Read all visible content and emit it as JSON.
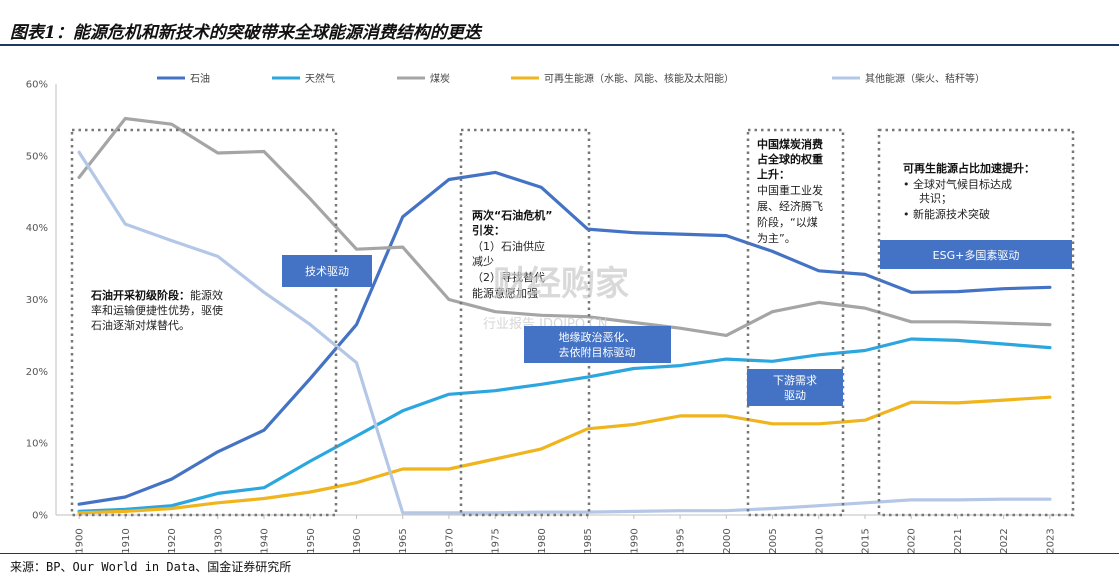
{
  "title": "图表1：能源危机和新技术的突破带来全球能源消费结构的更迭",
  "source": "来源：BP、Our World in Data、国金证券研究所",
  "watermark": {
    "main": "财经购家",
    "sub": "行业报告 IDOIPO.CN"
  },
  "chart_data": {
    "type": "line",
    "x": [
      "1900",
      "1910",
      "1920",
      "1930",
      "1940",
      "1950",
      "1960",
      "1965",
      "1970",
      "1975",
      "1980",
      "1985",
      "1990",
      "1995",
      "2000",
      "2005",
      "2010",
      "2015",
      "2020",
      "2021",
      "2022",
      "2023"
    ],
    "y_ticks": [
      "0%",
      "10%",
      "20%",
      "30%",
      "40%",
      "50%",
      "60%"
    ],
    "ylim": [
      0,
      60
    ],
    "series": [
      {
        "name": "石油",
        "color": "#4472c4",
        "values": [
          1.5,
          2.5,
          5,
          8.8,
          11.8,
          19,
          26.5,
          41.5,
          46.7,
          47.7,
          45.6,
          39.8,
          39.3,
          39.1,
          38.9,
          36.7,
          34,
          33.5,
          31,
          31.1,
          31.5,
          31.7
        ]
      },
      {
        "name": "天然气",
        "color": "#2ba6de",
        "values": [
          0.5,
          0.8,
          1.3,
          3,
          3.8,
          7.5,
          11,
          14.5,
          16.8,
          17.3,
          18.2,
          19.2,
          20.4,
          20.8,
          21.7,
          21.4,
          22.3,
          22.9,
          24.5,
          24.3,
          23.8,
          23.3
        ]
      },
      {
        "name": "煤炭",
        "color": "#a5a5a5",
        "values": [
          47,
          55.2,
          54.4,
          50.4,
          50.6,
          44,
          37,
          37.3,
          30,
          28.3,
          27.8,
          27.6,
          26.8,
          26,
          25,
          28.3,
          29.6,
          28.8,
          26.9,
          26.9,
          26.7,
          26.5
        ]
      },
      {
        "name": "可再生能源（水能、风能、核能及太阳能）",
        "color": "#f0b41c",
        "values": [
          0.3,
          0.5,
          0.9,
          1.7,
          2.3,
          3.2,
          4.5,
          6.4,
          6.4,
          7.8,
          9.2,
          12,
          12.6,
          13.8,
          13.8,
          12.7,
          12.7,
          13.2,
          15.7,
          15.6,
          16,
          16.4
        ]
      },
      {
        "name": "其他能源（柴火、秸秆等）",
        "color": "#b4c7e7",
        "values": [
          50.5,
          40.5,
          38.2,
          36,
          31,
          26.5,
          21.2,
          0.3,
          0.3,
          0.3,
          0.4,
          0.4,
          0.5,
          0.6,
          0.6,
          0.9,
          1.3,
          1.7,
          2.1,
          2.1,
          2.2,
          2.2
        ]
      }
    ]
  },
  "phases": [
    {
      "title": "石油开采初级阶段：",
      "lines": [
        "能源效",
        "率和运输便捷性优势，驱使",
        "石油逐渐对煤替代。"
      ]
    },
    {
      "title": "两次“石油危机”",
      "title2": "引发：",
      "lines": [
        "（1）石油供应",
        "减少",
        "（2）寻找替代",
        "能源意愿加强"
      ]
    },
    {
      "title_lines": [
        "中国煤炭消费",
        "占全球的权重",
        "上升："
      ],
      "lines": [
        "中国重工业发",
        "展、经济腾飞",
        "阶段，“以煤",
        "为主”。"
      ]
    },
    {
      "title": "可再生能源占比加速提升：",
      "bullets": [
        "全球对气候目标达成",
        "共识；",
        "新能源技术突破"
      ]
    }
  ],
  "drivers": [
    {
      "lines": [
        "技术驱动"
      ]
    },
    {
      "lines": [
        "地缘政治恶化、",
        "去依附目标驱动"
      ]
    },
    {
      "lines": [
        "下游需求",
        "驱动"
      ]
    },
    {
      "lines": [
        "ESG+多国素驱动"
      ]
    }
  ]
}
